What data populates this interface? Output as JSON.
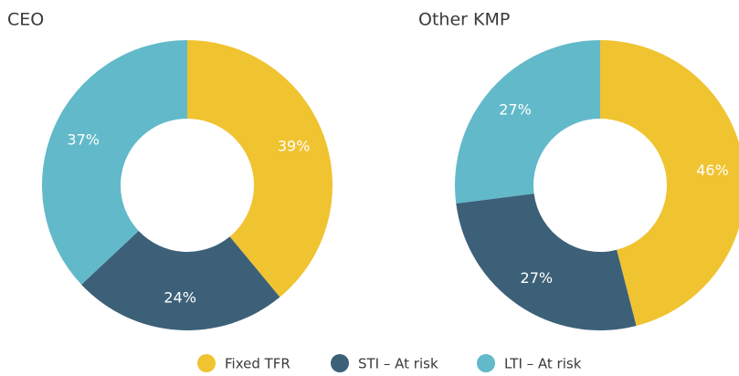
{
  "chart_data": [
    {
      "type": "donut",
      "title": "CEO",
      "categories": [
        "Fixed TFR",
        "STI – At risk",
        "LTI – At risk"
      ],
      "values": [
        39,
        24,
        37
      ],
      "value_labels": [
        "39%",
        "24%",
        "37%"
      ],
      "colors": [
        "#f0c330",
        "#3d6079",
        "#62b9c9"
      ]
    },
    {
      "type": "donut",
      "title": "Other KMP",
      "categories": [
        "Fixed TFR",
        "STI – At risk",
        "LTI – At risk"
      ],
      "values": [
        46,
        27,
        27
      ],
      "value_labels": [
        "46%",
        "27%",
        "27%"
      ],
      "colors": [
        "#f0c330",
        "#3d6079",
        "#62b9c9"
      ]
    }
  ]
}
